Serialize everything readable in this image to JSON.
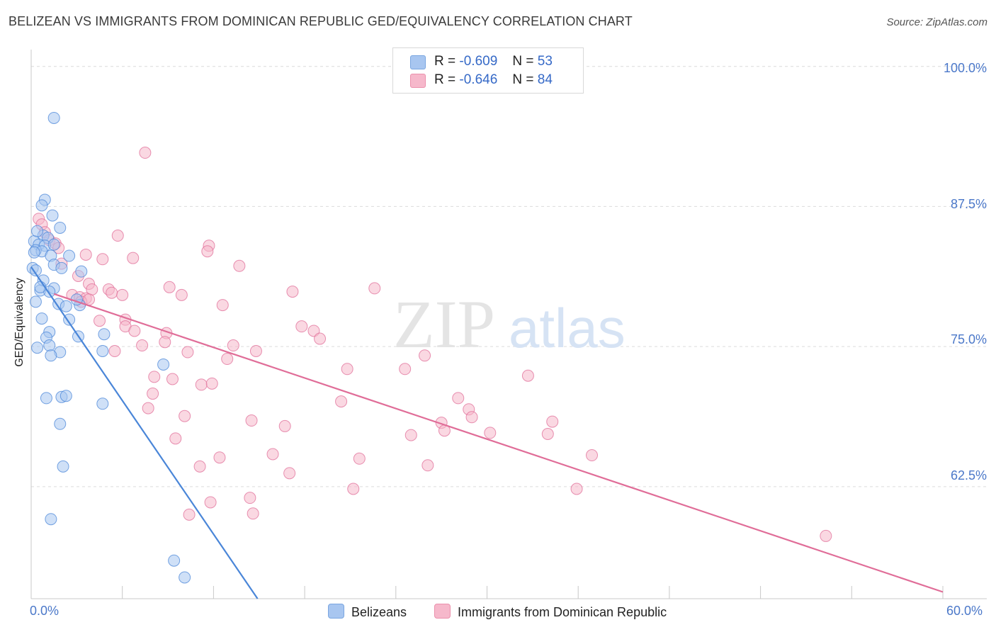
{
  "title": "BELIZEAN VS IMMIGRANTS FROM DOMINICAN REPUBLIC GED/EQUIVALENCY CORRELATION CHART",
  "source": "Source: ZipAtlas.com",
  "watermark": {
    "zip": "ZIP",
    "atlas": "atlas"
  },
  "stats": [
    {
      "r_label": "R =",
      "r_value": "-0.609",
      "n_label": "N =",
      "n_value": "53",
      "color": "#a8c6f0"
    },
    {
      "r_label": "R =",
      "r_value": "-0.646",
      "n_label": "N =",
      "n_value": "84",
      "color": "#f6b8cb"
    }
  ],
  "legend": [
    {
      "label": "Belizeans",
      "color": "#a8c6f0"
    },
    {
      "label": "Immigrants from Dominican Republic",
      "color": "#f6b8cb"
    }
  ],
  "chart_data": {
    "type": "scatter",
    "xlabel": "",
    "ylabel": "GED/Equivalency",
    "xlim": [
      0,
      60
    ],
    "ylim": [
      52.5,
      101.5
    ],
    "x_tick_labels": [
      "0.0%",
      "60.0%"
    ],
    "y_ticks": [
      62.5,
      75.0,
      87.5,
      100.0
    ],
    "y_tick_labels": [
      "62.5%",
      "75.0%",
      "87.5%",
      "100.0%"
    ],
    "grid": "horizontal dashed",
    "legend_position": "bottom-center",
    "series": [
      {
        "name": "Belizeans",
        "color": "#4a86d8",
        "fill": "#a8c6f0",
        "trend": {
          "x": [
            0.0,
            14.9
          ],
          "y": [
            82.1,
            52.5
          ]
        },
        "points": [
          [
            1.5,
            95.4
          ],
          [
            0.9,
            88.1
          ],
          [
            0.7,
            87.6
          ],
          [
            1.4,
            86.7
          ],
          [
            1.9,
            85.6
          ],
          [
            0.8,
            84.9
          ],
          [
            1.1,
            84.7
          ],
          [
            0.2,
            84.4
          ],
          [
            0.5,
            84.1
          ],
          [
            0.9,
            84.0
          ],
          [
            1.5,
            84.1
          ],
          [
            0.3,
            83.6
          ],
          [
            0.7,
            83.5
          ],
          [
            1.3,
            83.1
          ],
          [
            2.5,
            83.1
          ],
          [
            1.5,
            82.3
          ],
          [
            0.1,
            82.0
          ],
          [
            0.3,
            81.8
          ],
          [
            3.3,
            81.7
          ],
          [
            0.8,
            80.9
          ],
          [
            1.5,
            80.2
          ],
          [
            0.6,
            80.0
          ],
          [
            1.2,
            79.9
          ],
          [
            0.3,
            79.0
          ],
          [
            1.8,
            78.8
          ],
          [
            2.3,
            78.6
          ],
          [
            3.2,
            78.7
          ],
          [
            2.5,
            77.4
          ],
          [
            0.7,
            77.5
          ],
          [
            1.2,
            76.3
          ],
          [
            4.8,
            76.1
          ],
          [
            3.1,
            75.9
          ],
          [
            1.0,
            75.8
          ],
          [
            1.2,
            75.1
          ],
          [
            0.4,
            74.9
          ],
          [
            4.7,
            74.6
          ],
          [
            1.9,
            74.5
          ],
          [
            1.3,
            74.2
          ],
          [
            8.7,
            73.4
          ],
          [
            1.0,
            70.4
          ],
          [
            2.0,
            70.5
          ],
          [
            2.3,
            70.6
          ],
          [
            4.7,
            69.9
          ],
          [
            1.9,
            68.1
          ],
          [
            2.1,
            64.3
          ],
          [
            1.3,
            59.6
          ],
          [
            9.4,
            55.9
          ],
          [
            10.1,
            54.4
          ],
          [
            0.2,
            83.4
          ],
          [
            0.6,
            80.3
          ],
          [
            0.4,
            85.3
          ],
          [
            2.0,
            82.0
          ],
          [
            3.0,
            79.2
          ]
        ]
      },
      {
        "name": "Immigrants from Dominican Republic",
        "color": "#e06d98",
        "fill": "#f6b8cb",
        "trend": {
          "x": [
            1.5,
            60.0
          ],
          "y": [
            79.7,
            53.1
          ]
        },
        "points": [
          [
            7.5,
            92.3
          ],
          [
            0.5,
            86.4
          ],
          [
            0.7,
            85.9
          ],
          [
            0.9,
            85.2
          ],
          [
            5.7,
            84.9
          ],
          [
            1.2,
            84.5
          ],
          [
            1.6,
            84.2
          ],
          [
            1.8,
            83.8
          ],
          [
            11.7,
            84.0
          ],
          [
            11.6,
            83.5
          ],
          [
            3.6,
            83.2
          ],
          [
            4.7,
            82.8
          ],
          [
            6.7,
            82.9
          ],
          [
            2.0,
            82.4
          ],
          [
            13.7,
            82.2
          ],
          [
            3.8,
            80.6
          ],
          [
            9.1,
            80.3
          ],
          [
            4.0,
            80.1
          ],
          [
            5.1,
            80.1
          ],
          [
            5.3,
            79.8
          ],
          [
            17.2,
            79.9
          ],
          [
            22.6,
            80.2
          ],
          [
            9.9,
            79.6
          ],
          [
            6.0,
            79.6
          ],
          [
            2.7,
            79.6
          ],
          [
            3.2,
            79.4
          ],
          [
            3.6,
            79.3
          ],
          [
            3.3,
            79.0
          ],
          [
            3.8,
            79.2
          ],
          [
            12.6,
            78.7
          ],
          [
            4.5,
            77.3
          ],
          [
            6.2,
            77.4
          ],
          [
            6.2,
            76.8
          ],
          [
            6.8,
            76.4
          ],
          [
            8.9,
            76.2
          ],
          [
            17.8,
            76.8
          ],
          [
            18.6,
            76.4
          ],
          [
            19.0,
            75.7
          ],
          [
            13.3,
            75.1
          ],
          [
            7.3,
            75.1
          ],
          [
            8.8,
            75.4
          ],
          [
            5.5,
            74.6
          ],
          [
            10.3,
            74.5
          ],
          [
            14.8,
            74.6
          ],
          [
            25.9,
            74.2
          ],
          [
            12.9,
            73.9
          ],
          [
            20.8,
            73.0
          ],
          [
            24.6,
            73.0
          ],
          [
            8.1,
            72.3
          ],
          [
            9.3,
            72.1
          ],
          [
            11.2,
            71.6
          ],
          [
            11.9,
            71.7
          ],
          [
            32.7,
            72.4
          ],
          [
            8.0,
            70.8
          ],
          [
            28.1,
            70.4
          ],
          [
            20.4,
            70.1
          ],
          [
            7.7,
            69.5
          ],
          [
            28.8,
            69.4
          ],
          [
            10.1,
            68.8
          ],
          [
            29.0,
            68.7
          ],
          [
            14.5,
            68.4
          ],
          [
            16.7,
            67.9
          ],
          [
            27.0,
            68.2
          ],
          [
            34.3,
            68.3
          ],
          [
            9.5,
            66.8
          ],
          [
            25.0,
            67.1
          ],
          [
            27.2,
            67.5
          ],
          [
            30.2,
            67.3
          ],
          [
            34.0,
            67.2
          ],
          [
            15.9,
            65.4
          ],
          [
            12.4,
            65.1
          ],
          [
            21.6,
            65.0
          ],
          [
            36.9,
            65.3
          ],
          [
            11.1,
            64.3
          ],
          [
            26.1,
            64.4
          ],
          [
            17.0,
            63.7
          ],
          [
            14.4,
            61.5
          ],
          [
            11.8,
            61.1
          ],
          [
            21.2,
            62.3
          ],
          [
            35.9,
            62.3
          ],
          [
            10.4,
            60.0
          ],
          [
            14.6,
            60.1
          ],
          [
            52.3,
            58.1
          ],
          [
            3.1,
            81.3
          ]
        ]
      }
    ]
  }
}
